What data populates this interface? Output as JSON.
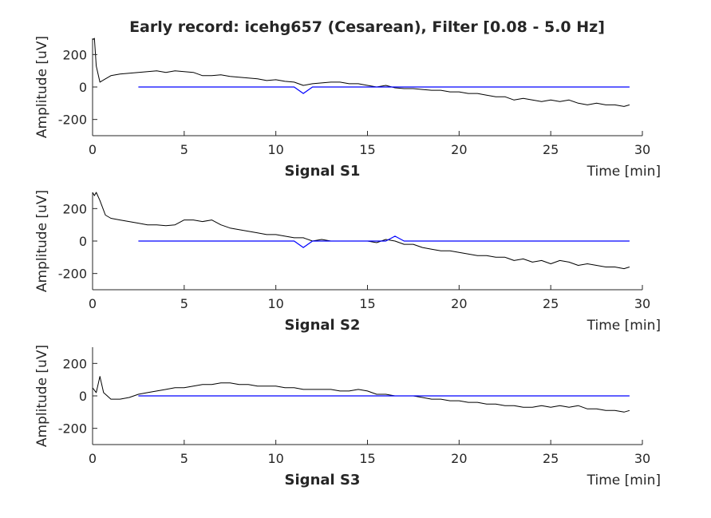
{
  "figure_title": "Early record: icehg657 (Cesarean), Filter [0.08 - 5.0 Hz]",
  "colors": {
    "raw": "#000000",
    "filtered": "#0000ff",
    "axes": "#262626"
  },
  "chart_data": [
    {
      "type": "line",
      "title": "Signal S1",
      "xlabel": "Time [min]",
      "ylabel": "Amplitude [uV]",
      "xlim": [
        0,
        30
      ],
      "ylim": [
        -300,
        300
      ],
      "xticks": [
        0,
        5,
        10,
        15,
        20,
        25,
        30
      ],
      "yticks": [
        -200,
        0,
        200
      ],
      "grid": false,
      "series": [
        {
          "color": "#000000",
          "x": [
            0,
            0.1,
            0.2,
            0.4,
            0.7,
            1,
            1.5,
            2,
            2.5,
            3,
            3.5,
            4,
            4.5,
            5,
            5.5,
            6,
            6.5,
            7,
            7.5,
            8,
            8.5,
            9,
            9.5,
            10,
            10.5,
            11,
            11.5,
            12,
            12.5,
            13,
            13.5,
            14,
            14.5,
            15,
            15.5,
            16,
            16.5,
            17,
            17.5,
            18,
            18.5,
            19,
            19.5,
            20,
            20.5,
            21,
            21.5,
            22,
            22.5,
            23,
            23.5,
            24,
            24.5,
            25,
            25.5,
            26,
            26.5,
            27,
            27.5,
            28,
            28.5,
            29,
            29.3
          ],
          "y": [
            290,
            300,
            130,
            30,
            50,
            70,
            80,
            85,
            90,
            95,
            100,
            90,
            100,
            95,
            90,
            70,
            70,
            75,
            65,
            60,
            55,
            50,
            40,
            45,
            35,
            30,
            10,
            20,
            25,
            30,
            30,
            20,
            20,
            10,
            0,
            10,
            -5,
            -10,
            -10,
            -15,
            -20,
            -20,
            -30,
            -30,
            -40,
            -40,
            -50,
            -60,
            -60,
            -80,
            -70,
            -80,
            -90,
            -80,
            -90,
            -80,
            -100,
            -110,
            -100,
            -110,
            -110,
            -120,
            -110
          ]
        },
        {
          "color": "#0000ff",
          "x": [
            2.5,
            3,
            4,
            5,
            6,
            7,
            8,
            9,
            10,
            11,
            11.5,
            12,
            13,
            14,
            15,
            16,
            17,
            18,
            19,
            20,
            21,
            22,
            23,
            24,
            25,
            26,
            26.8,
            27,
            29.3
          ],
          "y": [
            0,
            0,
            0,
            0,
            0,
            0,
            0,
            0,
            0,
            0,
            -40,
            0,
            0,
            0,
            0,
            0,
            0,
            0,
            0,
            0,
            0,
            0,
            0,
            0,
            0,
            0,
            0,
            0,
            0
          ]
        }
      ]
    },
    {
      "type": "line",
      "title": "Signal S2",
      "xlabel": "Time [min]",
      "ylabel": "Amplitude [uV]",
      "xlim": [
        0,
        30
      ],
      "ylim": [
        -300,
        300
      ],
      "xticks": [
        0,
        5,
        10,
        15,
        20,
        25,
        30
      ],
      "yticks": [
        -200,
        0,
        200
      ],
      "grid": false,
      "series": [
        {
          "color": "#000000",
          "x": [
            0,
            0.1,
            0.2,
            0.4,
            0.7,
            1,
            1.5,
            2,
            2.5,
            3,
            3.5,
            4,
            4.5,
            5,
            5.5,
            6,
            6.5,
            7,
            7.5,
            8,
            8.5,
            9,
            9.5,
            10,
            10.5,
            11,
            11.5,
            12,
            12.5,
            13,
            13.5,
            14,
            14.5,
            15,
            15.5,
            16,
            16.5,
            17,
            17.5,
            18,
            18.5,
            19,
            19.5,
            20,
            20.5,
            21,
            21.5,
            22,
            22.5,
            23,
            23.5,
            24,
            24.5,
            25,
            25.5,
            26,
            26.5,
            27,
            27.5,
            28,
            28.5,
            29,
            29.3
          ],
          "y": [
            300,
            280,
            300,
            250,
            160,
            140,
            130,
            120,
            110,
            100,
            100,
            95,
            100,
            130,
            130,
            120,
            130,
            100,
            80,
            70,
            60,
            50,
            40,
            40,
            30,
            20,
            20,
            0,
            10,
            0,
            0,
            0,
            0,
            0,
            -10,
            10,
            0,
            -20,
            -20,
            -40,
            -50,
            -60,
            -60,
            -70,
            -80,
            -90,
            -90,
            -100,
            -100,
            -120,
            -110,
            -130,
            -120,
            -140,
            -120,
            -130,
            -150,
            -140,
            -150,
            -160,
            -160,
            -170,
            -160
          ]
        },
        {
          "color": "#0000ff",
          "x": [
            2.5,
            3,
            4,
            5,
            6,
            7,
            8,
            9,
            10,
            11,
            11.5,
            12,
            13,
            14,
            15,
            16,
            16.5,
            17,
            18,
            19,
            20,
            21,
            22,
            23,
            24,
            25,
            26,
            26.8,
            27,
            29.3
          ],
          "y": [
            0,
            0,
            0,
            0,
            0,
            0,
            0,
            0,
            0,
            0,
            -40,
            0,
            0,
            0,
            0,
            0,
            30,
            0,
            0,
            0,
            0,
            0,
            0,
            0,
            0,
            0,
            0,
            0,
            0,
            0
          ]
        }
      ]
    },
    {
      "type": "line",
      "title": "Signal S3",
      "xlabel": "Time [min]",
      "ylabel": "Amplitude [uV]",
      "xlim": [
        0,
        30
      ],
      "ylim": [
        -300,
        300
      ],
      "xticks": [
        0,
        5,
        10,
        15,
        20,
        25,
        30
      ],
      "yticks": [
        -200,
        0,
        200
      ],
      "grid": false,
      "series": [
        {
          "color": "#000000",
          "x": [
            0,
            0.2,
            0.4,
            0.6,
            1,
            1.5,
            2,
            2.5,
            3,
            3.5,
            4,
            4.5,
            5,
            5.5,
            6,
            6.5,
            7,
            7.5,
            8,
            8.5,
            9,
            9.5,
            10,
            10.5,
            11,
            11.5,
            12,
            12.5,
            13,
            13.5,
            14,
            14.5,
            15,
            15.5,
            16,
            16.5,
            17,
            17.5,
            18,
            18.5,
            19,
            19.5,
            20,
            20.5,
            21,
            21.5,
            22,
            22.5,
            23,
            23.5,
            24,
            24.5,
            25,
            25.5,
            26,
            26.5,
            27,
            27.5,
            28,
            28.5,
            29,
            29.3
          ],
          "y": [
            50,
            20,
            120,
            20,
            -20,
            -20,
            -10,
            10,
            20,
            30,
            40,
            50,
            50,
            60,
            70,
            70,
            80,
            80,
            70,
            70,
            60,
            60,
            60,
            50,
            50,
            40,
            40,
            40,
            40,
            30,
            30,
            40,
            30,
            10,
            10,
            0,
            0,
            0,
            -10,
            -20,
            -20,
            -30,
            -30,
            -40,
            -40,
            -50,
            -50,
            -60,
            -60,
            -70,
            -70,
            -60,
            -70,
            -60,
            -70,
            -60,
            -80,
            -80,
            -90,
            -90,
            -100,
            -90
          ]
        },
        {
          "color": "#0000ff",
          "x": [
            2.5,
            3,
            4,
            5,
            6,
            7,
            8,
            9,
            10,
            11,
            12,
            13,
            14,
            15,
            16,
            17,
            18,
            19,
            20,
            21,
            22,
            23,
            24,
            25,
            26,
            26.8,
            27,
            29.3
          ],
          "y": [
            0,
            0,
            0,
            0,
            0,
            0,
            0,
            0,
            0,
            0,
            0,
            0,
            0,
            0,
            0,
            0,
            0,
            0,
            0,
            0,
            0,
            0,
            0,
            0,
            0,
            0,
            0,
            0
          ]
        }
      ]
    }
  ]
}
